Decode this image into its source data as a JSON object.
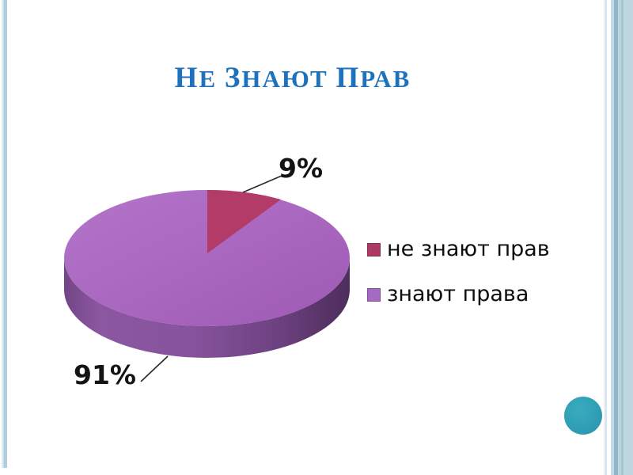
{
  "slide": {
    "title": "НЕ ЗНАЮТ ПРАВ",
    "background": "#ffffff"
  },
  "chart_data": {
    "type": "pie",
    "style": "3d",
    "title": "НЕ ЗНАЮТ ПРАВ",
    "labels": [
      "не знают прав",
      "знают права"
    ],
    "values": [
      9,
      91
    ],
    "unit": "%",
    "data_labels": [
      "9%",
      "91%"
    ],
    "slice_colors": [
      "#b23b67",
      "#a966bf"
    ],
    "start_angle_deg": 0,
    "direction": "clockwise",
    "legend_position": "right",
    "data_label_position": "outside-with-leader-lines"
  },
  "legend": {
    "items": [
      {
        "label": "не знают прав",
        "swatch_color": "#ad3a63"
      },
      {
        "label": "знают права",
        "swatch_color": "#a56ac4"
      }
    ]
  },
  "theme": {
    "title_color": "#1e72bd",
    "accent_circle_color": "#2fa0b7",
    "edge_band_color": "#bfd5e0",
    "edge_stripe_color": "#8fb7cb",
    "pie_top_color": "#a966bf",
    "pie_side_color": "#7a4a8e",
    "label_color": "#141414"
  }
}
